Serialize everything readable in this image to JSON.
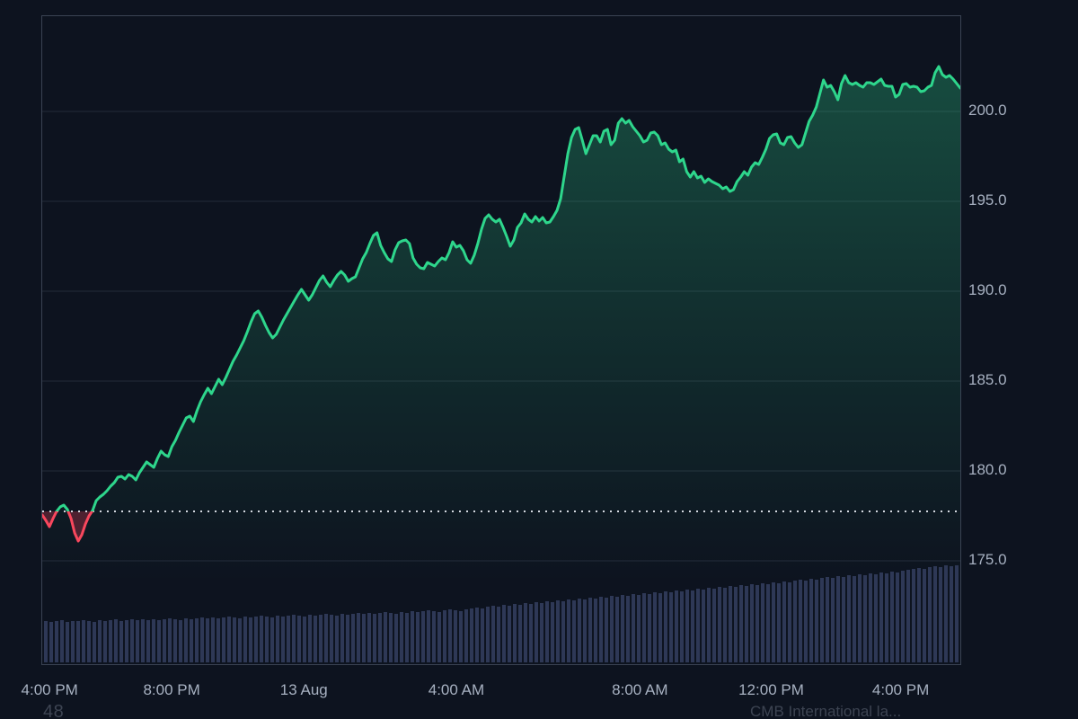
{
  "theme": {
    "background": "#0d131f",
    "up_color": "#2ed68c",
    "down_color": "#f8475d",
    "down_fill": "rgba(248,71,93,0.28)",
    "area_fill_color": "46,210,140",
    "grid_color": "rgba(160,176,196,0.16)",
    "axis_text_color": "#a7b1c1",
    "muted_text_color": "#3d4452",
    "volume_bar_color": "#2e3856",
    "prev_close_dot_color": "#d4d9e0",
    "border_color": "#3a4353"
  },
  "footer": {
    "bottom_left_text": "48",
    "bottom_right_text": "CMB International la..."
  },
  "chart_data": {
    "type": "line",
    "title": "",
    "xlabel": "",
    "ylabel": "",
    "legend": "none",
    "grid": "horizontal",
    "ylim": [
      169.25,
      205.3
    ],
    "prev_close": 177.75,
    "y_ticks": [
      200.0,
      195.0,
      190.0,
      185.0,
      180.0,
      175.0
    ],
    "y_tick_labels": [
      "200.0",
      "195.0",
      "190.0",
      "185.0",
      "180.0",
      "175.0"
    ],
    "x_tick_labels": [
      "4:00 PM",
      "8:00 PM",
      "13 Aug",
      "4:00 AM",
      "8:00 AM",
      "12:00 PM",
      "4:00 PM"
    ],
    "x_tick_pos": [
      0.009,
      0.142,
      0.286,
      0.452,
      0.652,
      0.795,
      0.936
    ],
    "series": [
      {
        "name": "price",
        "values": [
          177.55,
          177.25,
          176.9,
          177.35,
          177.75,
          178.0,
          178.1,
          177.85,
          177.35,
          176.55,
          176.1,
          176.45,
          177.05,
          177.5,
          177.8,
          178.35,
          178.55,
          178.7,
          178.9,
          179.15,
          179.35,
          179.65,
          179.7,
          179.55,
          179.8,
          179.7,
          179.5,
          179.9,
          180.2,
          180.5,
          180.35,
          180.2,
          180.7,
          181.1,
          180.9,
          180.8,
          181.35,
          181.7,
          182.15,
          182.55,
          182.95,
          183.05,
          182.75,
          183.35,
          183.85,
          184.25,
          184.6,
          184.3,
          184.7,
          185.1,
          184.8,
          185.2,
          185.65,
          186.1,
          186.45,
          186.85,
          187.25,
          187.75,
          188.3,
          188.75,
          188.9,
          188.55,
          188.1,
          187.7,
          187.4,
          187.6,
          188.0,
          188.4,
          188.75,
          189.1,
          189.45,
          189.8,
          190.1,
          189.8,
          189.5,
          189.8,
          190.2,
          190.6,
          190.85,
          190.5,
          190.25,
          190.6,
          190.9,
          191.1,
          190.9,
          190.55,
          190.7,
          190.8,
          191.3,
          191.8,
          192.15,
          192.65,
          193.1,
          193.25,
          192.55,
          192.15,
          191.8,
          191.65,
          192.3,
          192.7,
          192.8,
          192.85,
          192.65,
          191.85,
          191.5,
          191.3,
          191.25,
          191.6,
          191.5,
          191.4,
          191.65,
          191.85,
          191.75,
          192.15,
          192.75,
          192.45,
          192.55,
          192.25,
          191.75,
          191.55,
          192.0,
          192.65,
          193.45,
          194.05,
          194.25,
          194.0,
          193.85,
          194.0,
          193.55,
          193.05,
          192.5,
          192.85,
          193.55,
          193.8,
          194.3,
          194.0,
          193.85,
          194.15,
          193.9,
          194.1,
          193.8,
          193.85,
          194.15,
          194.5,
          195.15,
          196.4,
          197.65,
          198.55,
          199.0,
          199.1,
          198.4,
          197.65,
          198.15,
          198.65,
          198.65,
          198.3,
          198.9,
          199.0,
          198.15,
          198.4,
          199.35,
          199.6,
          199.35,
          199.5,
          199.15,
          198.9,
          198.65,
          198.3,
          198.4,
          198.8,
          198.85,
          198.65,
          198.15,
          198.25,
          197.9,
          197.75,
          197.85,
          197.2,
          197.35,
          196.65,
          196.35,
          196.65,
          196.3,
          196.4,
          196.05,
          196.25,
          196.1,
          196.0,
          195.9,
          195.7,
          195.8,
          195.55,
          195.65,
          196.1,
          196.35,
          196.65,
          196.45,
          196.9,
          197.15,
          197.05,
          197.45,
          197.9,
          198.5,
          198.7,
          198.75,
          198.25,
          198.15,
          198.55,
          198.6,
          198.25,
          198.0,
          198.15,
          198.8,
          199.45,
          199.8,
          200.25,
          201.0,
          201.75,
          201.35,
          201.45,
          201.1,
          200.65,
          201.55,
          202.0,
          201.6,
          201.5,
          201.6,
          201.45,
          201.35,
          201.6,
          201.6,
          201.5,
          201.65,
          201.8,
          201.45,
          201.4,
          201.4,
          200.8,
          200.95,
          201.5,
          201.55,
          201.35,
          201.4,
          201.35,
          201.1,
          201.15,
          201.35,
          201.45,
          202.15,
          202.5,
          202.05,
          201.9,
          202.0,
          201.8,
          201.55,
          201.3
        ]
      }
    ],
    "volume_relative": [
      46,
      45,
      46,
      47,
      45,
      46,
      46,
      47,
      46,
      45,
      47,
      46,
      47,
      48,
      46,
      47,
      48,
      47,
      48,
      47,
      48,
      47,
      48,
      49,
      48,
      47,
      49,
      48,
      49,
      50,
      49,
      50,
      49,
      50,
      51,
      50,
      49,
      51,
      50,
      51,
      52,
      51,
      50,
      52,
      51,
      52,
      53,
      52,
      51,
      53,
      52,
      53,
      54,
      53,
      52,
      54,
      53,
      54,
      55,
      54,
      55,
      54,
      55,
      56,
      55,
      54,
      56,
      55,
      57,
      56,
      57,
      58,
      57,
      56,
      58,
      59,
      58,
      57,
      59,
      60,
      61,
      60,
      62,
      63,
      62,
      64,
      63,
      65,
      64,
      66,
      65,
      67,
      66,
      68,
      67,
      69,
      68,
      70,
      69,
      71,
      70,
      72,
      71,
      73,
      72,
      74,
      73,
      75,
      74,
      76,
      75,
      77,
      76,
      78,
      77,
      79,
      78,
      80,
      79,
      81,
      80,
      82,
      81,
      83,
      82,
      84,
      83,
      85,
      84,
      86,
      85,
      87,
      86,
      88,
      87,
      89,
      88,
      90,
      89,
      91,
      92,
      91,
      93,
      92,
      94,
      95,
      94,
      96,
      95,
      97,
      96,
      98,
      97,
      99,
      98,
      100,
      99,
      101,
      100,
      102,
      103,
      104,
      105,
      104,
      106,
      107,
      106,
      108,
      107,
      108
    ]
  }
}
